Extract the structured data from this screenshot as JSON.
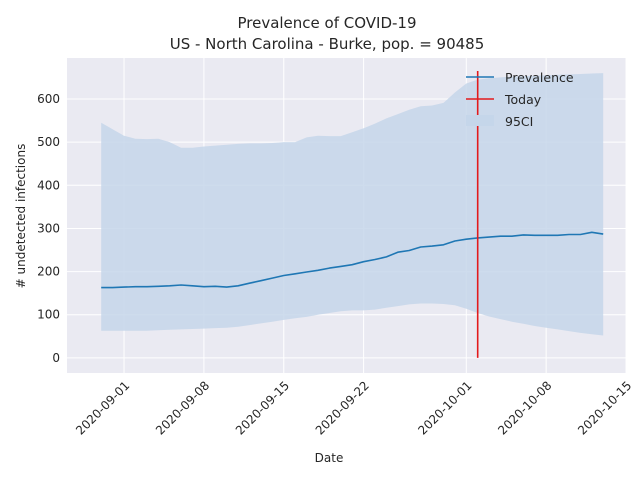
{
  "chart_data": {
    "type": "line",
    "title": "Prevalence of COVID-19",
    "subtitle": "US - North Carolina - Burke, pop. = 90485",
    "xlabel": "Date",
    "ylabel": "# undetected infections",
    "x_range": [
      "2020-08-27",
      "2020-10-15"
    ],
    "ylim": [
      -35,
      695
    ],
    "y_ticks": [
      0,
      100,
      200,
      300,
      400,
      500,
      600
    ],
    "x_ticks": [
      "2020-09-01",
      "2020-09-08",
      "2020-09-15",
      "2020-09-22",
      "2020-10-01",
      "2020-10-08",
      "2020-10-15"
    ],
    "grid": true,
    "background": "#eaeaf2",
    "legend": {
      "position": "top-right",
      "entries": [
        {
          "label": "Prevalence",
          "kind": "line",
          "color": "#1f77b4"
        },
        {
          "label": "Today",
          "kind": "line",
          "color": "#e31a1c"
        },
        {
          "label": "95CI",
          "kind": "band",
          "color": "#c5d6ea"
        }
      ]
    },
    "series": [
      {
        "name": "Prevalence",
        "kind": "line",
        "color": "#1f77b4",
        "points": [
          [
            "2020-08-30",
            163
          ],
          [
            "2020-08-31",
            163
          ],
          [
            "2020-09-01",
            164
          ],
          [
            "2020-09-02",
            165
          ],
          [
            "2020-09-03",
            165
          ],
          [
            "2020-09-04",
            166
          ],
          [
            "2020-09-05",
            167
          ],
          [
            "2020-09-06",
            169
          ],
          [
            "2020-09-07",
            167
          ],
          [
            "2020-09-08",
            165
          ],
          [
            "2020-09-09",
            166
          ],
          [
            "2020-09-10",
            164
          ],
          [
            "2020-09-11",
            167
          ],
          [
            "2020-09-12",
            173
          ],
          [
            "2020-09-13",
            179
          ],
          [
            "2020-09-14",
            185
          ],
          [
            "2020-09-15",
            191
          ],
          [
            "2020-09-16",
            195
          ],
          [
            "2020-09-17",
            199
          ],
          [
            "2020-09-18",
            203
          ],
          [
            "2020-09-19",
            208
          ],
          [
            "2020-09-20",
            212
          ],
          [
            "2020-09-21",
            216
          ],
          [
            "2020-09-22",
            223
          ],
          [
            "2020-09-23",
            228
          ],
          [
            "2020-09-24",
            234
          ],
          [
            "2020-09-25",
            245
          ],
          [
            "2020-09-26",
            249
          ],
          [
            "2020-09-27",
            257
          ],
          [
            "2020-09-28",
            259
          ],
          [
            "2020-09-29",
            262
          ],
          [
            "2020-09-30",
            271
          ],
          [
            "2020-10-01",
            275
          ],
          [
            "2020-10-02",
            278
          ],
          [
            "2020-10-03",
            280
          ],
          [
            "2020-10-04",
            282
          ],
          [
            "2020-10-05",
            282
          ],
          [
            "2020-10-06",
            285
          ],
          [
            "2020-10-07",
            284
          ],
          [
            "2020-10-08",
            284
          ],
          [
            "2020-10-09",
            284
          ],
          [
            "2020-10-10",
            286
          ],
          [
            "2020-10-11",
            286
          ],
          [
            "2020-10-12",
            291
          ],
          [
            "2020-10-13",
            287
          ]
        ]
      },
      {
        "name": "95CI",
        "kind": "band",
        "color": "#c5d6ea",
        "points": [
          [
            "2020-08-30",
            63,
            545
          ],
          [
            "2020-08-31",
            63,
            530
          ],
          [
            "2020-09-01",
            63,
            515
          ],
          [
            "2020-09-02",
            63,
            508
          ],
          [
            "2020-09-03",
            63,
            507
          ],
          [
            "2020-09-04",
            64,
            508
          ],
          [
            "2020-09-05",
            65,
            500
          ],
          [
            "2020-09-06",
            66,
            487
          ],
          [
            "2020-09-07",
            67,
            487
          ],
          [
            "2020-09-08",
            68,
            490
          ],
          [
            "2020-09-09",
            69,
            492
          ],
          [
            "2020-09-10",
            70,
            494
          ],
          [
            "2020-09-11",
            72,
            496
          ],
          [
            "2020-09-12",
            76,
            497
          ],
          [
            "2020-09-13",
            80,
            497
          ],
          [
            "2020-09-14",
            84,
            498
          ],
          [
            "2020-09-15",
            88,
            500
          ],
          [
            "2020-09-16",
            92,
            500
          ],
          [
            "2020-09-17",
            95,
            511
          ],
          [
            "2020-09-18",
            100,
            515
          ],
          [
            "2020-09-19",
            104,
            514
          ],
          [
            "2020-09-20",
            108,
            514
          ],
          [
            "2020-09-21",
            110,
            523
          ],
          [
            "2020-09-22",
            110,
            532
          ],
          [
            "2020-09-23",
            112,
            543
          ],
          [
            "2020-09-24",
            116,
            555
          ],
          [
            "2020-09-25",
            120,
            565
          ],
          [
            "2020-09-26",
            124,
            575
          ],
          [
            "2020-09-27",
            126,
            583
          ],
          [
            "2020-09-28",
            126,
            585
          ],
          [
            "2020-09-29",
            125,
            591
          ],
          [
            "2020-09-30",
            122,
            615
          ],
          [
            "2020-10-01",
            114,
            636
          ],
          [
            "2020-10-02",
            104,
            645
          ],
          [
            "2020-10-03",
            96,
            648
          ],
          [
            "2020-10-04",
            90,
            650
          ],
          [
            "2020-10-05",
            84,
            652
          ],
          [
            "2020-10-06",
            79,
            653
          ],
          [
            "2020-10-07",
            74,
            654
          ],
          [
            "2020-10-08",
            70,
            655
          ],
          [
            "2020-10-09",
            66,
            656
          ],
          [
            "2020-10-10",
            62,
            657
          ],
          [
            "2020-10-11",
            58,
            658
          ],
          [
            "2020-10-12",
            55,
            659
          ],
          [
            "2020-10-13",
            52,
            660
          ]
        ]
      },
      {
        "name": "Today",
        "kind": "vline",
        "color": "#e31a1c",
        "x": "2020-10-02",
        "y_range": [
          0,
          665
        ]
      }
    ]
  }
}
